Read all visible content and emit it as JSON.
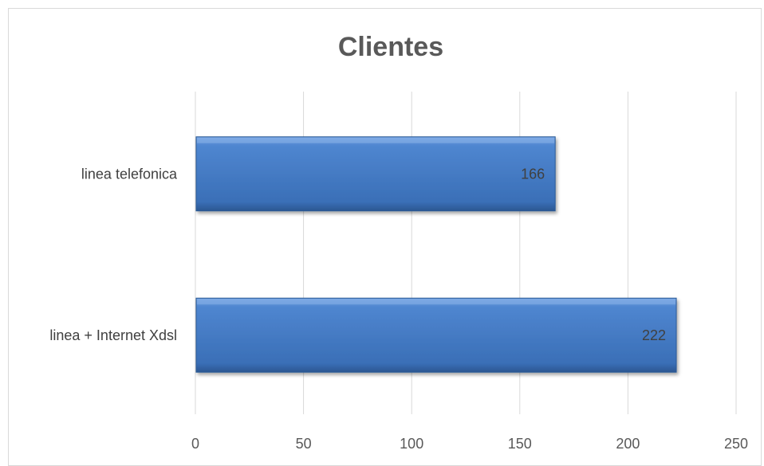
{
  "chart_data": {
    "type": "bar",
    "orientation": "horizontal",
    "title": "Clientes",
    "categories": [
      "linea telefonica",
      "linea + Internet Xdsl"
    ],
    "values": [
      166,
      222
    ],
    "data_labels": [
      "166",
      "222"
    ],
    "xlim": [
      0,
      250
    ],
    "x_ticks": [
      "0",
      "50",
      "100",
      "150",
      "200",
      "250"
    ],
    "grid": true,
    "legend": "none",
    "bar_color": "#4a7ebb"
  }
}
